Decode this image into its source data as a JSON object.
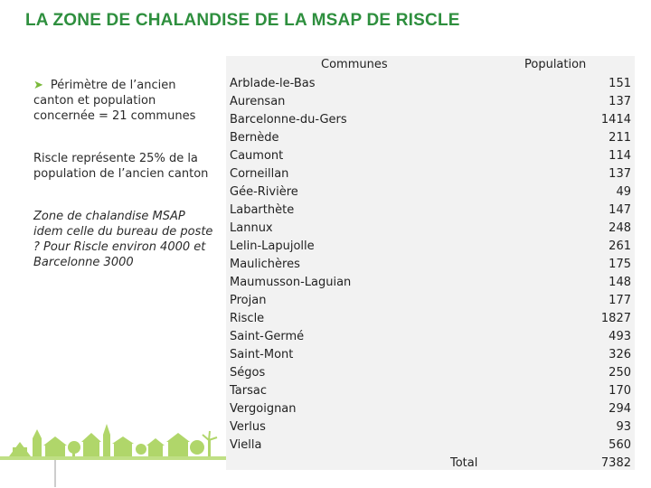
{
  "title": "LA ZONE DE CHALANDISE DE LA MSAP DE RISCLE",
  "left": {
    "point1": "Périmètre de l’ancien canton et population concernée = 21 communes",
    "point2": "Riscle représente 25% de la population de l’ancien canton",
    "point3": "Zone de chalandise MSAP idem celle du bureau de poste ? Pour Riscle environ 4000 et Barcelonne 3000"
  },
  "table": {
    "header_communes": "Communes",
    "header_population": "Population",
    "rows": [
      {
        "commune": "Arblade-le-Bas",
        "population": "151"
      },
      {
        "commune": "Aurensan",
        "population": "137"
      },
      {
        "commune": "Barcelonne-du-Gers",
        "population": "1414"
      },
      {
        "commune": "Bernède",
        "population": "211"
      },
      {
        "commune": "Caumont",
        "population": "114"
      },
      {
        "commune": "Corneillan",
        "population": "137"
      },
      {
        "commune": "Gée-Rivière",
        "population": "49"
      },
      {
        "commune": "Labarthète",
        "population": "147"
      },
      {
        "commune": "Lannux",
        "population": "248"
      },
      {
        "commune": "Lelin-Lapujolle",
        "population": "261"
      },
      {
        "commune": "Maulichères",
        "population": "175"
      },
      {
        "commune": "Maumusson-Laguian",
        "population": "148"
      },
      {
        "commune": "Projan",
        "population": "177"
      },
      {
        "commune": "Riscle",
        "population": "1827"
      },
      {
        "commune": "Saint-Germé",
        "population": "493"
      },
      {
        "commune": "Saint-Mont",
        "population": "326"
      },
      {
        "commune": "Ségos",
        "population": "250"
      },
      {
        "commune": "Tarsac",
        "population": "170"
      },
      {
        "commune": "Vergoignan",
        "population": "294"
      },
      {
        "commune": "Verlus",
        "population": "93"
      },
      {
        "commune": "Viella",
        "population": "560"
      }
    ],
    "total_label": "Total",
    "total_value": "7382"
  },
  "colors": {
    "title": "#2e8f3e",
    "bullet": "#7ab93a",
    "table_bg": "#f2f2f2",
    "illustration": "#9bc94a"
  },
  "icons": {
    "bullet": "arrow-bullet-icon",
    "illustration": "green-village-illustration"
  }
}
